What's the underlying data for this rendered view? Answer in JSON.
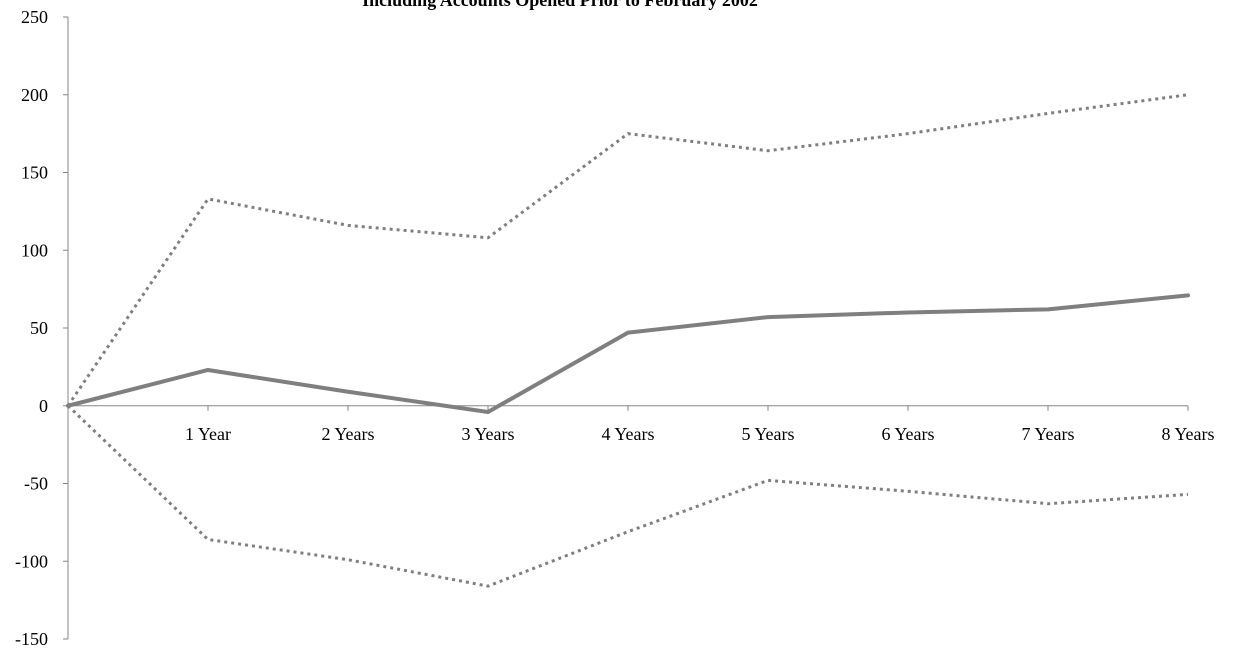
{
  "chart_data": {
    "type": "line",
    "title": "Including Accounts Opened Prior to February 2002",
    "xlabel": "",
    "ylabel": "",
    "categories": [
      "",
      "1 Year",
      "2 Years",
      "3 Years",
      "4 Years",
      "5 Years",
      "6 Years",
      "7 Years",
      "8 Years"
    ],
    "ylim": [
      -150,
      250
    ],
    "yticks": [
      250,
      200,
      150,
      100,
      50,
      0,
      -50,
      -100,
      -150
    ],
    "grid": false,
    "legend": "none",
    "series": [
      {
        "style": "solid",
        "color": "#7f7f7f",
        "values": [
          0,
          23,
          9,
          -4,
          47,
          57,
          60,
          62,
          71
        ]
      },
      {
        "style": "dotted",
        "color": "#7f7f7f",
        "values": [
          0,
          133,
          116,
          108,
          175,
          164,
          175,
          188,
          200
        ]
      },
      {
        "style": "dotted",
        "color": "#7f7f7f",
        "values": [
          0,
          -86,
          -99,
          -116,
          -81,
          -48,
          -55,
          -63,
          -57
        ]
      }
    ]
  }
}
